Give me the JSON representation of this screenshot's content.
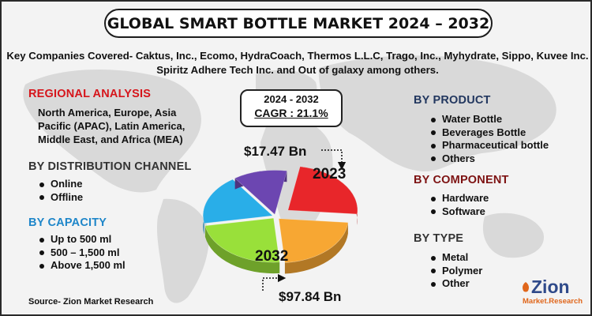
{
  "title": "GLOBAL SMART BOTTLE MARKET 2024 – 2032",
  "companies": "Key Companies Covered- Caktus, Inc., Ecomo, HydraCoach, Thermos L.L.C, Trago, Inc., Myhydrate, Sippo, Kuvee Inc. Spiritz Adhere Tech Inc. and Out of galaxy among others.",
  "regional": {
    "title": "REGIONAL ANALYSIS",
    "text": "North America, Europe, Asia Pacific (APAC), Latin America, Middle East, and Africa (MEA)"
  },
  "distribution": {
    "title": "BY DISTRIBUTION CHANNEL",
    "items": [
      "Online",
      "Offline"
    ]
  },
  "capacity": {
    "title": "BY CAPACITY",
    "items": [
      "Up to 500 ml",
      "500 – 1,500 ml",
      "Above 1,500 ml"
    ]
  },
  "cagr": {
    "years": "2024 - 2032",
    "value": "CAGR : 21.1%"
  },
  "market": {
    "start_value": "$17.47 Bn",
    "start_year": "2023",
    "end_value": "$97.84 Bn",
    "end_year": "2032"
  },
  "product": {
    "title": "BY PRODUCT",
    "items": [
      "Water Bottle",
      "Beverages Bottle",
      "Pharmaceutical bottle",
      "Others"
    ]
  },
  "component": {
    "title": "BY COMPONENT",
    "items": [
      "Hardware",
      "Software"
    ]
  },
  "type": {
    "title": "BY TYPE",
    "items": [
      "Metal",
      "Polymer",
      "Other"
    ]
  },
  "source": "Source- Zion Market Research",
  "logo": {
    "name": "Zion",
    "sub": "Market.Research"
  },
  "colors": {
    "slice_red": "#e8262a",
    "slice_orange": "#f7a733",
    "slice_green": "#99e03a",
    "slice_blue": "#29aee8",
    "slice_purple": "#6c46b1"
  }
}
